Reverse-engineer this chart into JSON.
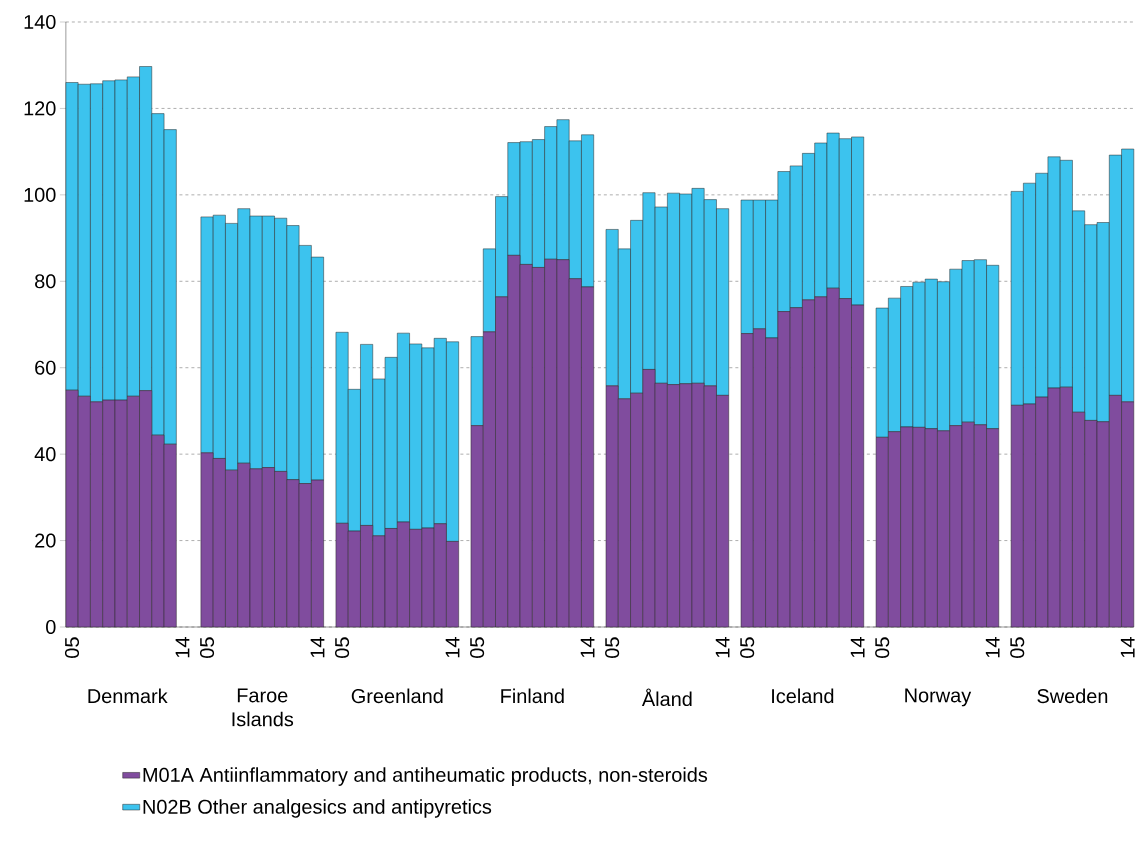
{
  "chart_data": {
    "type": "bar",
    "stacked": true,
    "categories": [
      "05",
      null,
      null,
      null,
      null,
      null,
      null,
      null,
      null,
      "14",
      null,
      "05",
      null,
      null,
      null,
      null,
      null,
      null,
      null,
      null,
      "14",
      null,
      "05",
      null,
      null,
      null,
      null,
      null,
      null,
      null,
      null,
      "14",
      null,
      "05",
      null,
      null,
      null,
      null,
      null,
      null,
      null,
      null,
      "14",
      null,
      "05",
      null,
      null,
      null,
      null,
      null,
      null,
      null,
      null,
      "14",
      null,
      "05",
      null,
      null,
      null,
      null,
      null,
      null,
      null,
      null,
      "14",
      null,
      "05",
      null,
      null,
      null,
      null,
      null,
      null,
      null,
      null,
      "14",
      null,
      "05",
      null,
      null,
      null,
      null,
      null,
      null,
      null,
      null,
      "14"
    ],
    "series": [
      {
        "name": "M01A  Antiinflammatory and antiheumatic products, non-steroids",
        "color": "#804c9e",
        "values": [
          54.8,
          53.4,
          52.1,
          52.5,
          52.5,
          53.4,
          54.7,
          44.4,
          42.3,
          null,
          null,
          40.3,
          39.0,
          36.3,
          37.9,
          36.6,
          36.9,
          36.0,
          34.1,
          33.2,
          34.0,
          null,
          24.0,
          22.2,
          23.5,
          21.1,
          22.8,
          24.3,
          22.6,
          22.9,
          23.9,
          19.8,
          null,
          46.6,
          68.3,
          76.4,
          86.0,
          83.9,
          83.2,
          85.1,
          85.0,
          80.6,
          78.7,
          null,
          55.8,
          52.8,
          54.1,
          59.6,
          56.4,
          56.1,
          56.3,
          56.4,
          55.8,
          53.6,
          null,
          67.9,
          69.0,
          66.9,
          73.0,
          73.9,
          75.7,
          76.4,
          78.4,
          76.0,
          74.5,
          null,
          43.9,
          45.2,
          46.3,
          46.2,
          45.9,
          45.4,
          46.6,
          47.4,
          46.8,
          45.9,
          null,
          51.3,
          51.6,
          53.2,
          55.3,
          55.5,
          49.7,
          47.8,
          47.5,
          53.6,
          52.1
        ]
      },
      {
        "name": "N02B Other analgesics and antipyretics",
        "color": "#3cc3ee",
        "values": [
          71.2,
          72.2,
          73.6,
          73.9,
          74.1,
          73.9,
          75.0,
          74.4,
          72.8,
          null,
          null,
          54.6,
          56.3,
          57.1,
          58.9,
          58.5,
          58.2,
          58.6,
          58.8,
          55.1,
          51.6,
          null,
          44.2,
          32.8,
          41.9,
          36.3,
          39.6,
          43.7,
          42.9,
          41.7,
          42.9,
          46.2,
          null,
          20.6,
          19.2,
          23.2,
          26.1,
          28.4,
          29.6,
          30.7,
          32.4,
          31.9,
          35.2,
          null,
          36.2,
          34.7,
          40.0,
          40.9,
          40.8,
          44.3,
          43.9,
          45.1,
          43.1,
          43.2,
          null,
          30.9,
          29.8,
          31.9,
          32.4,
          32.8,
          33.9,
          35.6,
          35.9,
          37.0,
          38.9,
          null,
          29.9,
          30.9,
          32.5,
          33.6,
          34.6,
          34.5,
          36.2,
          37.4,
          38.2,
          37.8,
          null,
          49.5,
          51.1,
          51.8,
          53.5,
          52.5,
          46.6,
          45.3,
          46.1,
          55.6,
          58.5
        ]
      }
    ],
    "annotations": [
      "Denmark",
      "Faroe Islands",
      "Greenland",
      "Finland",
      "Åland",
      "Iceland",
      "Norway",
      "Sweden"
    ],
    "ylim": [
      0,
      140
    ],
    "yticks": [
      0,
      20,
      40,
      60,
      80,
      100,
      120,
      140
    ],
    "grid": "y",
    "legend": "bottom"
  }
}
